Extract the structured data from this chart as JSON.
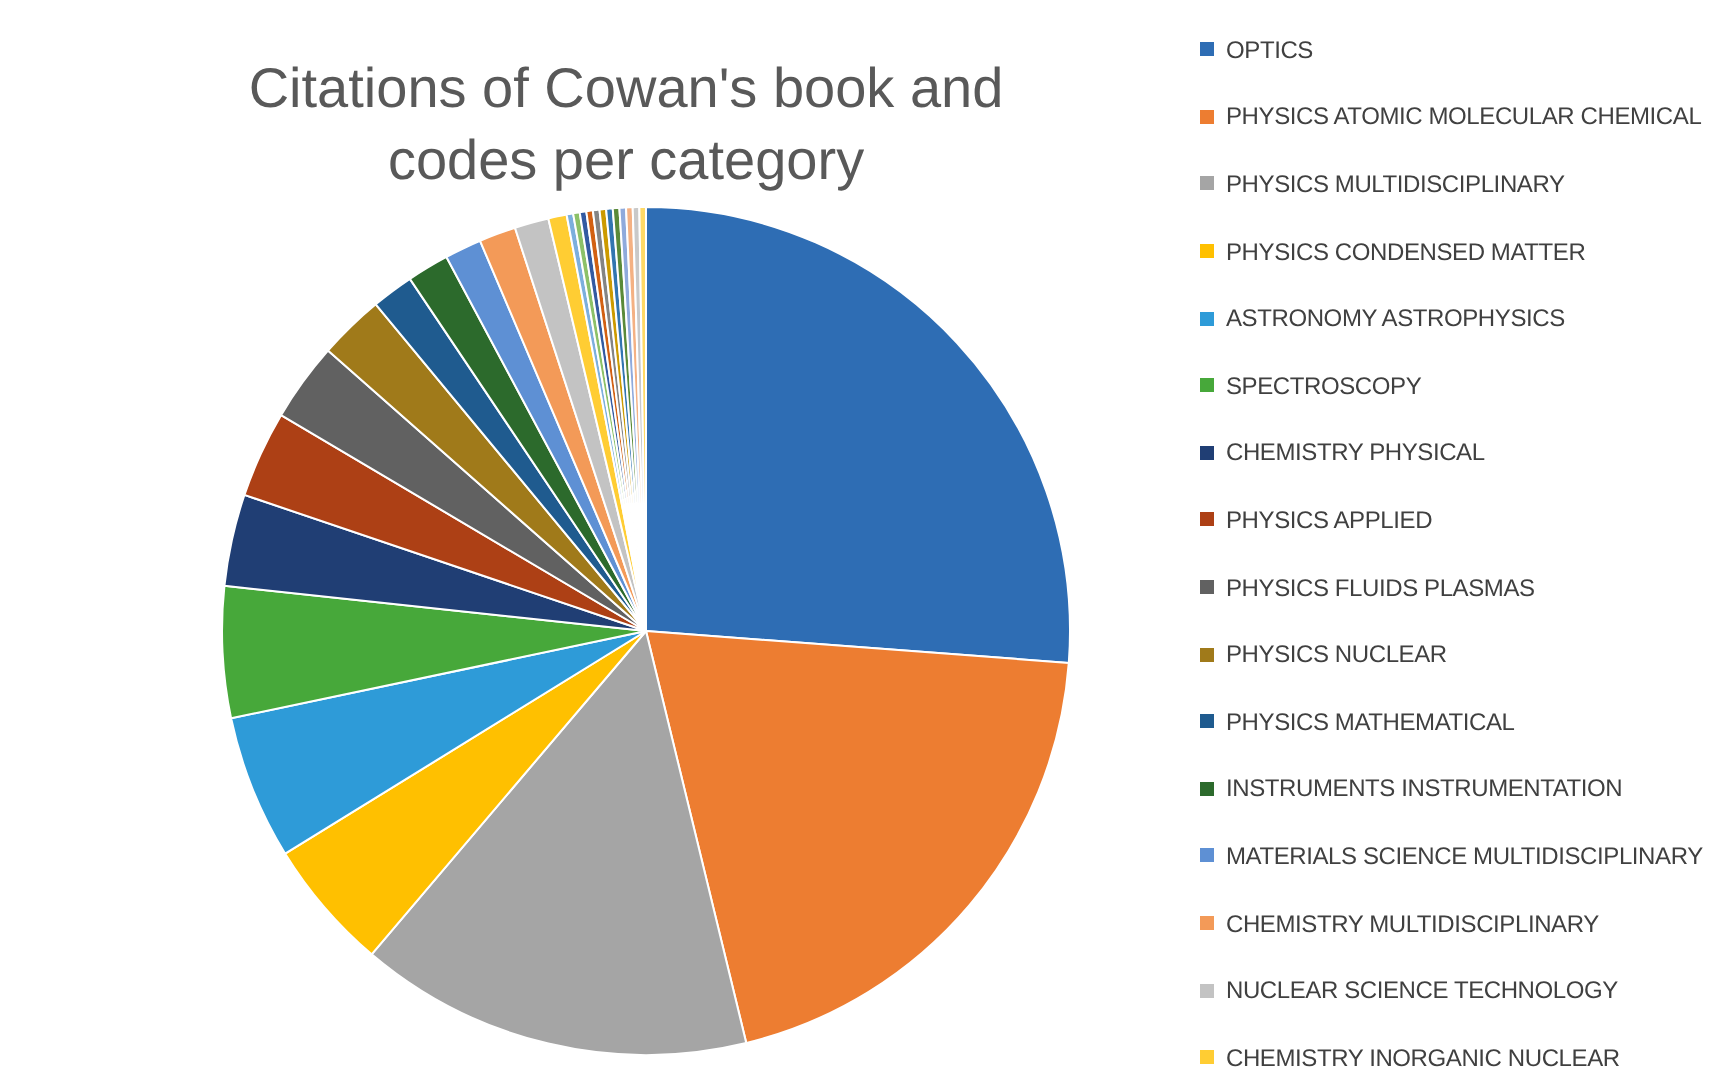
{
  "chart_data": {
    "type": "pie",
    "title": "Citations of Cowan's book and codes per category",
    "legend": "right",
    "categories": [
      "OPTICS",
      "PHYSICS ATOMIC MOLECULAR CHEMICAL",
      "PHYSICS MULTIDISCIPLINARY",
      "PHYSICS CONDENSED MATTER",
      "ASTRONOMY ASTROPHYSICS",
      "SPECTROSCOPY",
      "CHEMISTRY PHYSICAL",
      "PHYSICS APPLIED",
      "PHYSICS FLUIDS PLASMAS",
      "PHYSICS NUCLEAR",
      "PHYSICS MATHEMATICAL",
      "INSTRUMENTS INSTRUMENTATION",
      "MATERIALS SCIENCE MULTIDISCIPLINARY",
      "CHEMISTRY MULTIDISCIPLINARY",
      "NUCLEAR SCIENCE TECHNOLOGY",
      "CHEMISTRY INORGANIC NUCLEAR",
      null,
      null,
      null,
      null,
      null,
      null,
      null,
      null,
      null,
      null,
      null,
      null
    ],
    "values": [
      26.2,
      20,
      15,
      5,
      5.5,
      5,
      3.5,
      3.3,
      3,
      2.5,
      1.6,
      1.6,
      1.4,
      1.4,
      1.3,
      0.7,
      0.25,
      0.25,
      0.25,
      0.25,
      0.25,
      0.25,
      0.25,
      0.25,
      0.25,
      0.25,
      0.25,
      0.25
    ],
    "colors": [
      "#2e6db4",
      "#ed7d31",
      "#a5a5a5",
      "#ffc000",
      "#2e9bd8",
      "#47a83a",
      "#203e74",
      "#ad4015",
      "#616161",
      "#a07a1a",
      "#1f5b8f",
      "#2c6a2c",
      "#5e90d4",
      "#f39a58",
      "#c3c3c3",
      "#ffcd33",
      "#7cafdd",
      "#8cc168",
      "#335aa1",
      "#d26012",
      "#848484",
      "#cc9a00",
      "#3275b0",
      "#5a8a39",
      "#8faadc",
      "#f4b183",
      "#c9c9c9",
      "#ffd966"
    ]
  }
}
